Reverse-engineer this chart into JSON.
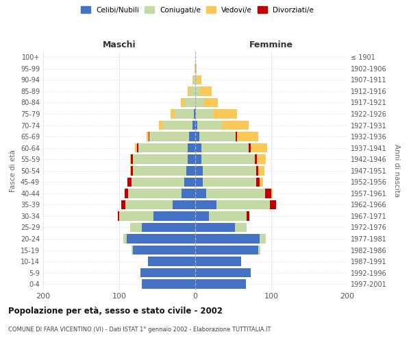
{
  "age_groups": [
    "100+",
    "95-99",
    "90-94",
    "85-89",
    "80-84",
    "75-79",
    "70-74",
    "65-69",
    "60-64",
    "55-59",
    "50-54",
    "45-49",
    "40-44",
    "35-39",
    "30-34",
    "25-29",
    "20-24",
    "15-19",
    "10-14",
    "5-9",
    "0-4"
  ],
  "birth_years": [
    "≤ 1901",
    "1902-1906",
    "1907-1911",
    "1912-1916",
    "1917-1921",
    "1922-1926",
    "1927-1931",
    "1932-1936",
    "1937-1941",
    "1942-1946",
    "1947-1951",
    "1952-1956",
    "1957-1961",
    "1962-1966",
    "1967-1971",
    "1972-1976",
    "1977-1981",
    "1982-1986",
    "1987-1991",
    "1992-1996",
    "1997-2001"
  ],
  "maschi": {
    "celibi": [
      0,
      0,
      0,
      0,
      0,
      2,
      4,
      8,
      10,
      10,
      12,
      14,
      18,
      30,
      55,
      70,
      90,
      82,
      62,
      72,
      70
    ],
    "coniugati": [
      0,
      1,
      3,
      7,
      14,
      25,
      38,
      52,
      65,
      72,
      70,
      70,
      70,
      62,
      45,
      16,
      5,
      2,
      0,
      0,
      0
    ],
    "vedovi": [
      0,
      0,
      1,
      3,
      5,
      5,
      6,
      3,
      2,
      1,
      1,
      0,
      0,
      0,
      0,
      0,
      0,
      0,
      0,
      0,
      0
    ],
    "divorziati": [
      0,
      0,
      0,
      0,
      0,
      0,
      0,
      1,
      2,
      3,
      3,
      5,
      5,
      5,
      2,
      0,
      0,
      0,
      0,
      0,
      0
    ]
  },
  "femmine": {
    "nubili": [
      0,
      0,
      0,
      0,
      0,
      1,
      3,
      5,
      8,
      8,
      10,
      10,
      14,
      28,
      18,
      52,
      85,
      83,
      60,
      73,
      67
    ],
    "coniugate": [
      0,
      0,
      2,
      6,
      12,
      22,
      32,
      48,
      62,
      70,
      70,
      70,
      78,
      70,
      50,
      16,
      8,
      3,
      0,
      0,
      0
    ],
    "vedove": [
      0,
      2,
      6,
      16,
      18,
      32,
      35,
      28,
      22,
      12,
      8,
      4,
      2,
      0,
      0,
      0,
      0,
      0,
      0,
      0,
      0
    ],
    "divorziate": [
      0,
      0,
      0,
      0,
      0,
      0,
      0,
      2,
      3,
      3,
      3,
      5,
      8,
      8,
      3,
      0,
      0,
      0,
      0,
      0,
      0
    ]
  },
  "colors": {
    "celibi": "#4472C4",
    "coniugati": "#C5D9A4",
    "vedovi": "#FAC858",
    "divorziati": "#C00000"
  },
  "title": "Popolazione per età, sesso e stato civile - 2002",
  "subtitle": "COMUNE DI FARA VICENTINO (VI) - Dati ISTAT 1° gennaio 2002 - Elaborazione TUTTITALIA.IT",
  "label_maschi": "Maschi",
  "label_femmine": "Femmine",
  "ylabel_left": "Fasce di età",
  "ylabel_right": "Anni di nascita",
  "legend_labels": [
    "Celibi/Nubili",
    "Coniugati/e",
    "Vedovi/e",
    "Divorziati/e"
  ],
  "xlim": 200,
  "background_color": "#ffffff",
  "grid_color": "#cccccc"
}
